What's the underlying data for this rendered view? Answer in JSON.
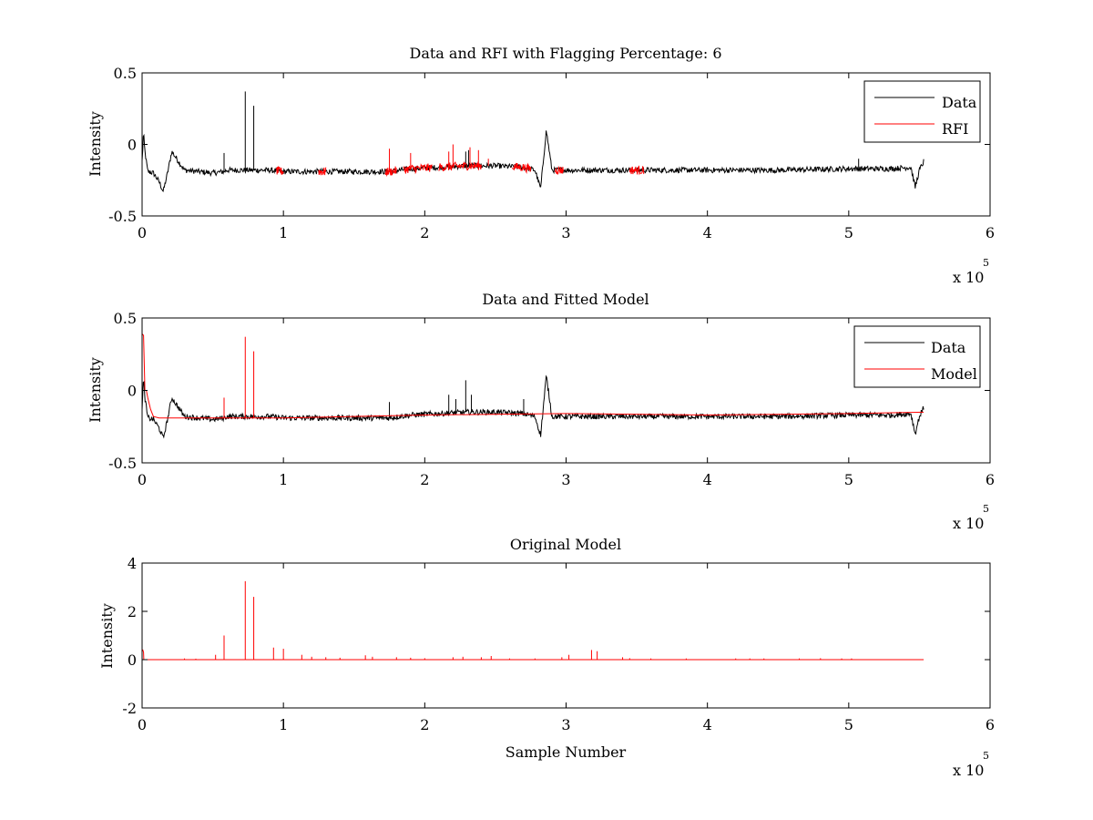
{
  "figure": {
    "background": "#ffffff"
  },
  "chart_data": [
    {
      "type": "line",
      "title": "Data and RFI with Flagging Percentage: 6",
      "xlabel": "",
      "ylabel": "Intensity",
      "xlim": [
        0,
        6
      ],
      "ylim": [
        -0.5,
        0.5
      ],
      "x_ticks": [
        "0",
        "1",
        "2",
        "3",
        "4",
        "5",
        "6"
      ],
      "y_ticks": [
        "-0.5",
        "0",
        "0.5"
      ],
      "x_exponent": {
        "base": "x 10",
        "power": "5"
      },
      "x_units_note": "x values in units of 10^5 samples",
      "legend_position": "top-right",
      "grid": false,
      "series": [
        {
          "name": "Data",
          "color": "#000000",
          "baseline": -0.19,
          "noise": 0.012,
          "x": [
            0,
            0.01,
            0.02,
            0.04,
            0.08,
            0.12,
            0.15,
            0.18,
            0.21,
            0.3,
            0.5,
            0.58,
            0.6,
            0.9,
            1.0,
            1.5,
            1.75,
            1.9,
            2.1,
            2.3,
            2.5,
            2.7,
            2.78,
            2.82,
            2.86,
            2.9,
            3.0,
            3.5,
            4.0,
            4.5,
            5.0,
            5.1,
            5.3,
            5.44,
            5.47,
            5.5,
            5.53
          ],
          "y": [
            -0.12,
            0.08,
            -0.05,
            -0.19,
            -0.2,
            -0.26,
            -0.33,
            -0.2,
            -0.05,
            -0.18,
            -0.2,
            -0.19,
            -0.18,
            -0.18,
            -0.19,
            -0.19,
            -0.19,
            -0.17,
            -0.16,
            -0.15,
            -0.15,
            -0.16,
            -0.18,
            -0.31,
            0.1,
            -0.18,
            -0.18,
            -0.18,
            -0.18,
            -0.18,
            -0.17,
            -0.17,
            -0.17,
            -0.16,
            -0.3,
            -0.18,
            -0.12
          ],
          "spikes": [
            [
              0.58,
              -0.06
            ],
            [
              0.73,
              0.37
            ],
            [
              0.79,
              0.27
            ],
            [
              2.29,
              -0.05
            ],
            [
              2.31,
              -0.04
            ],
            [
              5.07,
              -0.1
            ]
          ]
        },
        {
          "name": "RFI",
          "color": "#ff0000",
          "segments": [
            [
              0.95,
              1.0
            ],
            [
              1.25,
              1.3
            ],
            [
              1.72,
              1.8
            ],
            [
              1.85,
              2.05
            ],
            [
              2.1,
              2.4
            ],
            [
              2.62,
              2.75
            ],
            [
              2.92,
              2.98
            ],
            [
              3.45,
              3.55
            ]
          ],
          "spikes": [
            [
              1.75,
              -0.03
            ],
            [
              1.9,
              -0.06
            ],
            [
              2.17,
              -0.05
            ],
            [
              2.2,
              0.0
            ],
            [
              2.32,
              -0.02
            ],
            [
              2.38,
              -0.04
            ],
            [
              2.45,
              -0.1
            ]
          ]
        }
      ]
    },
    {
      "type": "line",
      "title": "Data and Fitted Model",
      "xlabel": "",
      "ylabel": "Intensity",
      "xlim": [
        0,
        6
      ],
      "ylim": [
        -0.5,
        0.5
      ],
      "x_ticks": [
        "0",
        "1",
        "2",
        "3",
        "4",
        "5",
        "6"
      ],
      "y_ticks": [
        "-0.5",
        "0",
        "0.5"
      ],
      "x_exponent": {
        "base": "x 10",
        "power": "5"
      },
      "x_units_note": "x values in units of 10^5 samples",
      "legend_position": "top-right",
      "grid": false,
      "series": [
        {
          "name": "Data",
          "color": "#000000",
          "baseline": -0.19,
          "noise": 0.012,
          "x": [
            0,
            0.01,
            0.02,
            0.04,
            0.08,
            0.12,
            0.15,
            0.18,
            0.21,
            0.3,
            0.5,
            0.58,
            0.6,
            0.9,
            1.0,
            1.5,
            1.75,
            1.9,
            2.1,
            2.3,
            2.5,
            2.7,
            2.78,
            2.82,
            2.86,
            2.9,
            3.0,
            3.5,
            4.0,
            4.5,
            5.0,
            5.1,
            5.3,
            5.44,
            5.47,
            5.5,
            5.53
          ],
          "y": [
            -0.12,
            0.08,
            -0.05,
            -0.19,
            -0.2,
            -0.26,
            -0.33,
            -0.2,
            -0.05,
            -0.18,
            -0.2,
            -0.19,
            -0.18,
            -0.18,
            -0.19,
            -0.19,
            -0.19,
            -0.17,
            -0.16,
            -0.15,
            -0.15,
            -0.16,
            -0.18,
            -0.31,
            0.1,
            -0.18,
            -0.18,
            -0.18,
            -0.18,
            -0.18,
            -0.17,
            -0.17,
            -0.17,
            -0.16,
            -0.3,
            -0.18,
            -0.12
          ],
          "spikes": [
            [
              1.75,
              -0.08
            ],
            [
              2.17,
              -0.03
            ],
            [
              2.22,
              -0.06
            ],
            [
              2.29,
              0.07
            ],
            [
              2.33,
              -0.03
            ],
            [
              2.7,
              -0.06
            ]
          ]
        },
        {
          "name": "Model",
          "color": "#ff0000",
          "x": [
            0,
            0.01,
            0.02,
            0.03,
            0.04,
            0.06,
            0.08,
            0.12,
            1.0,
            2.0,
            3.0,
            4.0,
            5.0,
            5.53
          ],
          "y": [
            0.39,
            0.38,
            0.0,
            0.0,
            -0.05,
            -0.13,
            -0.18,
            -0.19,
            -0.19,
            -0.17,
            -0.16,
            -0.17,
            -0.16,
            -0.15
          ],
          "spikes": [
            [
              0.58,
              -0.05
            ],
            [
              0.73,
              0.37
            ],
            [
              0.79,
              0.27
            ]
          ]
        }
      ]
    },
    {
      "type": "line",
      "title": "Original Model",
      "xlabel": "Sample Number",
      "ylabel": "Intensity",
      "xlim": [
        0,
        6
      ],
      "ylim": [
        -2,
        4
      ],
      "x_ticks": [
        "0",
        "1",
        "2",
        "3",
        "4",
        "5",
        "6"
      ],
      "y_ticks": [
        "-2",
        "0",
        "2",
        "4"
      ],
      "x_exponent": {
        "base": "x 10",
        "power": "5"
      },
      "x_units_note": "x values in units of 10^5 samples",
      "legend_position": "none",
      "grid": false,
      "series": [
        {
          "name": "",
          "color": "#ff0000",
          "x": [
            0,
            0.005,
            0.01,
            0.012,
            5.53
          ],
          "y": [
            0.4,
            0.4,
            0.3,
            0.0,
            0.0
          ],
          "spikes": [
            [
              0.3,
              0.05
            ],
            [
              0.38,
              0.04
            ],
            [
              0.52,
              0.2
            ],
            [
              0.58,
              1.0
            ],
            [
              0.73,
              3.25
            ],
            [
              0.79,
              2.6
            ],
            [
              0.93,
              0.5
            ],
            [
              1.0,
              0.45
            ],
            [
              1.13,
              0.2
            ],
            [
              1.2,
              0.12
            ],
            [
              1.3,
              0.1
            ],
            [
              1.4,
              0.08
            ],
            [
              1.58,
              0.18
            ],
            [
              1.63,
              0.12
            ],
            [
              1.8,
              0.1
            ],
            [
              1.9,
              0.08
            ],
            [
              2.0,
              0.06
            ],
            [
              2.2,
              0.1
            ],
            [
              2.27,
              0.12
            ],
            [
              2.4,
              0.1
            ],
            [
              2.47,
              0.15
            ],
            [
              2.6,
              0.05
            ],
            [
              2.78,
              0.05
            ],
            [
              2.97,
              0.1
            ],
            [
              3.02,
              0.2
            ],
            [
              3.18,
              0.4
            ],
            [
              3.22,
              0.35
            ],
            [
              3.4,
              0.1
            ],
            [
              3.45,
              0.06
            ],
            [
              3.6,
              0.05
            ],
            [
              3.85,
              0.05
            ],
            [
              4.2,
              0.05
            ],
            [
              4.3,
              0.05
            ],
            [
              4.4,
              0.05
            ],
            [
              4.65,
              0.05
            ],
            [
              4.8,
              0.06
            ],
            [
              4.95,
              0.05
            ],
            [
              5.02,
              0.05
            ]
          ]
        }
      ]
    }
  ]
}
